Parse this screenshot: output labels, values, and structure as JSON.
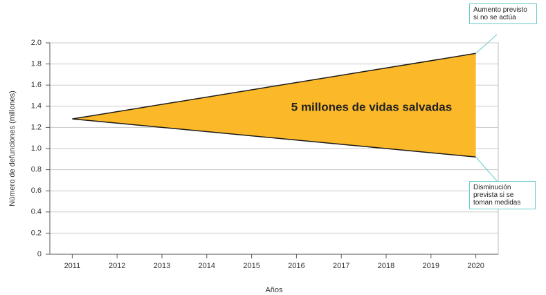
{
  "chart_data": {
    "type": "area_between",
    "xlabel": "Años",
    "ylabel": "Número de defunciones (millones)",
    "annotation": "5 millones de vidas salvadas",
    "x": [
      2011,
      2020
    ],
    "series": [
      {
        "name": "Aumento previsto si no se actúa",
        "color": "#1a1a1a",
        "values": [
          1.28,
          1.9
        ]
      },
      {
        "name": "Disminución prevista si se toman medidas",
        "color": "#1a1a1a",
        "values": [
          1.28,
          0.92
        ]
      }
    ],
    "fill_color": "#fbb829",
    "xlim": [
      2010.5,
      2020.5
    ],
    "xticks": [
      2011,
      2012,
      2013,
      2014,
      2015,
      2016,
      2017,
      2018,
      2019,
      2020
    ],
    "ylim": [
      0,
      2
    ],
    "yticks": [
      0,
      0.2,
      0.4,
      0.6,
      0.8,
      {
        "value": 1,
        "label": "1.0"
      },
      1.2,
      1.4,
      1.6,
      1.8,
      {
        "value": 2,
        "label": "2.0"
      }
    ],
    "grid": true
  }
}
